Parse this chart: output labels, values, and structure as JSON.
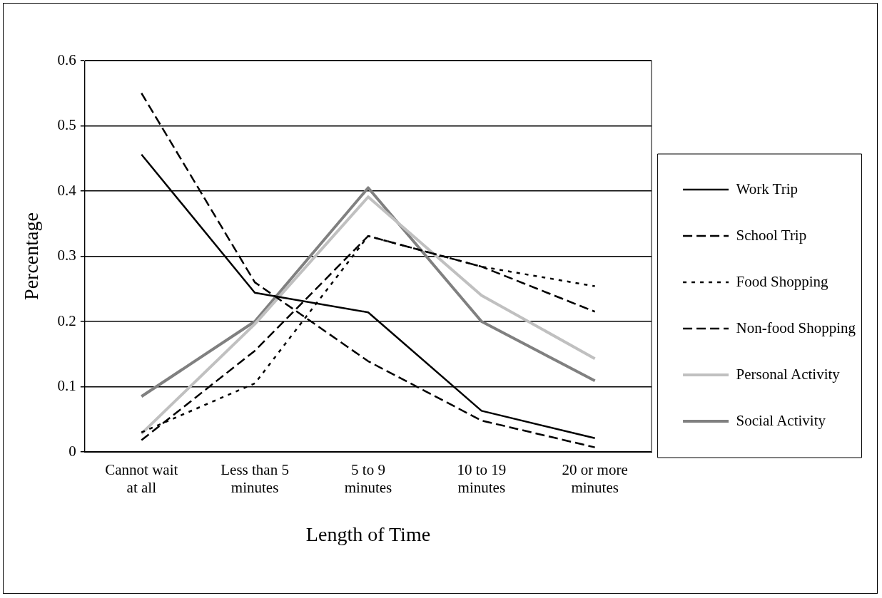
{
  "chart_data": {
    "type": "line",
    "xlabel": "Length of Time",
    "ylabel": "Percentage",
    "categories": [
      "Cannot wait at all",
      "Less than 5 minutes",
      "5 to 9 minutes",
      "10 to 19 minutes",
      "20 or more minutes"
    ],
    "series": [
      {
        "name": "Work Trip",
        "color": "#000000",
        "line_style": "solid",
        "values": [
          0.456,
          0.244,
          0.214,
          0.063,
          0.021
        ]
      },
      {
        "name": "School Trip",
        "color": "#000000",
        "line_style": "dashed",
        "values": [
          0.55,
          0.26,
          0.139,
          0.048,
          0.007
        ]
      },
      {
        "name": "Food Shopping",
        "color": "#000000",
        "line_style": "dotted",
        "values": [
          0.03,
          0.105,
          0.331,
          0.284,
          0.254
        ]
      },
      {
        "name": "Non-food Shopping",
        "color": "#000000",
        "line_style": "dashed",
        "values": [
          0.018,
          0.155,
          0.331,
          0.284,
          0.215
        ]
      },
      {
        "name": "Personal Activity",
        "color": "#c0c0c0",
        "line_style": "solid",
        "values": [
          0.028,
          0.196,
          0.391,
          0.24,
          0.143
        ]
      },
      {
        "name": "Social Activity",
        "color": "#808080",
        "line_style": "solid",
        "values": [
          0.085,
          0.2,
          0.405,
          0.2,
          0.109
        ]
      }
    ],
    "ylim": [
      0,
      0.6
    ],
    "yticks": [
      0,
      0.1,
      0.2,
      0.3,
      0.4,
      0.5,
      0.6
    ],
    "grid": "y",
    "legend": "right",
    "marker": "none"
  }
}
